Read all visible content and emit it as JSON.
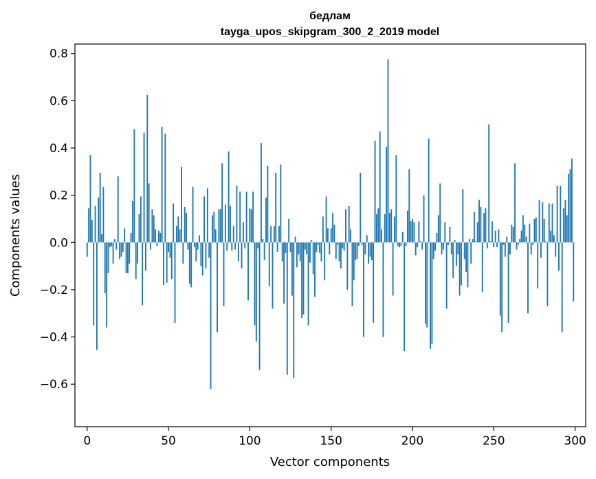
{
  "chart_data": {
    "type": "bar",
    "title": "бедлам",
    "subtitle": "tayga_upos_skipgram_300_2_2019 model",
    "xlabel": "Vector components",
    "ylabel": "Components values",
    "xlim": [
      -7.5,
      306.5
    ],
    "ylim": [
      -0.78,
      0.84
    ],
    "xticks": [
      0,
      50,
      100,
      150,
      200,
      250,
      300
    ],
    "xtick_labels": [
      "0",
      "50",
      "100",
      "150",
      "200",
      "250",
      "300"
    ],
    "yticks": [
      -0.6,
      -0.4,
      -0.2,
      0.0,
      0.2,
      0.4,
      0.6,
      0.8
    ],
    "ytick_labels": [
      "−0.6",
      "−0.4",
      "−0.2",
      "0.0",
      "0.2",
      "0.4",
      "0.6",
      "0.8"
    ],
    "grid": false,
    "bar_color": "#1f77b4",
    "values": [
      -0.06,
      0.145,
      0.37,
      0.095,
      -0.35,
      0.155,
      -0.455,
      0.19,
      0.295,
      0.035,
      0.235,
      -0.215,
      -0.36,
      -0.13,
      -0.02,
      -0.015,
      -0.09,
      0.015,
      -0.03,
      0.28,
      -0.07,
      -0.06,
      -0.04,
      0.06,
      -0.13,
      -0.13,
      -0.09,
      0.04,
      0.175,
      0.48,
      -0.155,
      -0.09,
      0.12,
      0.195,
      -0.265,
      0.465,
      -0.12,
      0.625,
      0.25,
      -0.03,
      0.14,
      0.115,
      0.055,
      -0.015,
      0.05,
      0.04,
      0.49,
      -0.18,
      0.46,
      -0.17,
      -0.04,
      -0.065,
      -0.155,
      0.165,
      -0.34,
      0.07,
      0.11,
      0.055,
      0.32,
      -0.09,
      0.15,
      0.125,
      -0.03,
      -0.175,
      -0.19,
      0.235,
      -0.02,
      -0.08,
      -0.03,
      0.03,
      -0.1,
      -0.14,
      0.195,
      -0.11,
      0.23,
      -0.065,
      -0.62,
      0.115,
      0.13,
      0.055,
      -0.38,
      0.14,
      0.14,
      0.335,
      -0.27,
      0.16,
      -0.035,
      0.385,
      0.155,
      -0.035,
      0.07,
      -0.03,
      0.24,
      -0.08,
      0.215,
      -0.11,
      0.085,
      -0.025,
      0.215,
      -0.245,
      0.145,
      0.14,
      0.215,
      -0.35,
      -0.42,
      -0.025,
      -0.54,
      0.42,
      0.015,
      -0.075,
      0.19,
      0.325,
      -0.185,
      0.07,
      -0.28,
      0.07,
      0.295,
      -0.04,
      0.07,
      0.33,
      -0.08,
      -0.26,
      -0.045,
      -0.56,
      0.1,
      -0.04,
      -0.225,
      -0.575,
      0.025,
      -0.105,
      -0.05,
      -0.08,
      -0.32,
      -0.305,
      -0.03,
      -0.05,
      -0.35,
      -0.085,
      0.01,
      -0.135,
      -0.23,
      -0.04,
      -0.01,
      -0.045,
      -0.08,
      0.11,
      -0.16,
      0.195,
      0.06,
      -0.05,
      0.06,
      0.125,
      0.075,
      -0.07,
      -0.01,
      -0.08,
      -0.11,
      -0.025,
      -0.035,
      0.14,
      -0.2,
      0.155,
      0.055,
      -0.27,
      -0.16,
      -0.075,
      -0.07,
      -0.015,
      0.295,
      -0.01,
      -0.4,
      -0.05,
      0.03,
      -0.09,
      -0.06,
      -0.075,
      -0.34,
      0.43,
      0.12,
      0.145,
      0.47,
      0.055,
      -0.4,
      0.12,
      0.405,
      0.775,
      0.125,
      0.14,
      -0.225,
      0.11,
      0.37,
      -0.015,
      -0.02,
      -0.015,
      0.045,
      -0.46,
      -0.015,
      0.135,
      0.31,
      0.09,
      0.1,
      0.085,
      -0.055,
      -0.02,
      0.09,
      0.005,
      -0.03,
      0.2,
      -0.345,
      -0.36,
      0.44,
      -0.45,
      -0.43,
      -0.07,
      -0.035,
      0.04,
      0.115,
      0.25,
      -0.05,
      -0.03,
      0.085,
      -0.28,
      -0.01,
      0.065,
      -0.05,
      -0.15,
      0.01,
      -0.1,
      -0.05,
      -0.225,
      -0.18,
      0.225,
      -0.07,
      -0.125,
      -0.19,
      0.015,
      -0.09,
      0.015,
      0.13,
      0.005,
      0.085,
      0.18,
      0.15,
      -0.21,
      0.125,
      0.145,
      -0.025,
      0.5,
      0.005,
      0.09,
      -0.02,
      0.05,
      -0.02,
      0.055,
      -0.31,
      -0.38,
      -0.01,
      -0.06,
      0.025,
      -0.34,
      -0.05,
      0.075,
      0.065,
      0.335,
      -0.03,
      -0.01,
      0.015,
      0.05,
      0.115,
      0.075,
      0.025,
      -0.3,
      0.08,
      -0.05,
      -0.01,
      0.1,
      0.105,
      -0.195,
      0.18,
      -0.065,
      0.17,
      0.1,
      0.005,
      -0.27,
      0.165,
      0.05,
      0.165,
      0.03,
      -0.06,
      0.24,
      -0.12,
      0.24,
      -0.38,
      0.145,
      0.18,
      0.115,
      0.29,
      0.31,
      0.355,
      -0.25
    ]
  }
}
